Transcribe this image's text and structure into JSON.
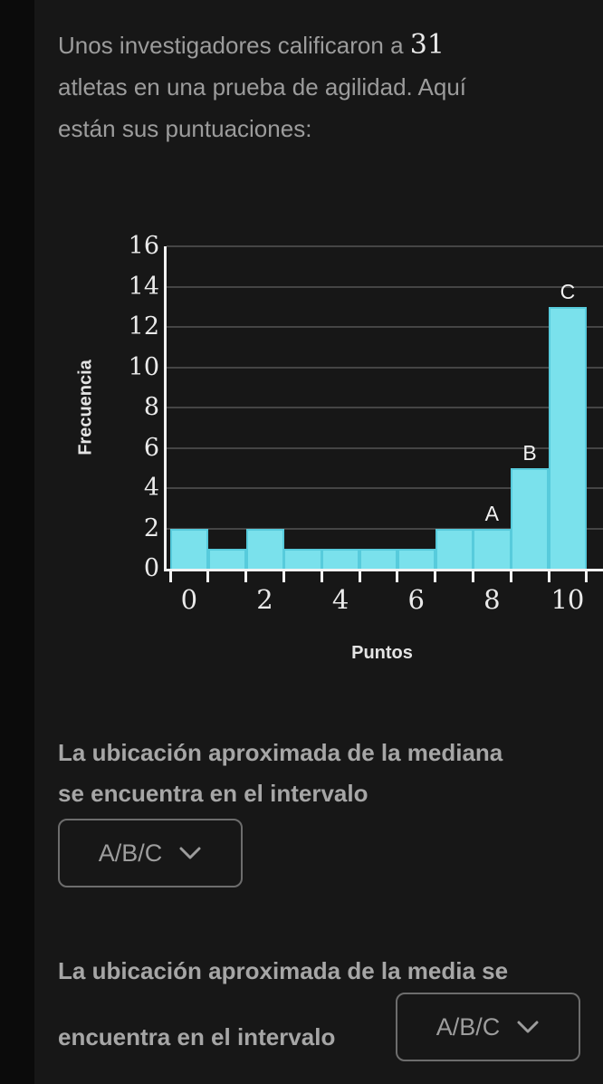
{
  "intro": {
    "line1_pre": "Unos investigadores calificaron a ",
    "athlete_count": "31",
    "line2": "atletas en una prueba de agilidad. Aquí",
    "line3": "están sus puntuaciones:"
  },
  "chart_data": {
    "type": "bar",
    "title": "",
    "xlabel": "Puntos",
    "ylabel": "Frecuencia",
    "categories": [
      0,
      1,
      2,
      3,
      4,
      5,
      6,
      7,
      8,
      9,
      10
    ],
    "values": [
      2,
      1,
      2,
      1,
      1,
      1,
      1,
      2,
      2,
      5,
      13
    ],
    "ylim": [
      0,
      16
    ],
    "ytick_step": 2,
    "xtick_labels": [
      "0",
      "2",
      "4",
      "6",
      "8",
      "10"
    ],
    "grid": "horizontal",
    "legend": "none",
    "bar_labels": [
      {
        "text": "A",
        "bin": 8
      },
      {
        "text": "B",
        "bin": 9
      },
      {
        "text": "C",
        "bin": 10
      }
    ],
    "bar_color": "#7ae1ec",
    "bar_border_color": "#57cbdc",
    "gridline_color": "#454545",
    "axis_color": "#f2f2f2"
  },
  "question_median": {
    "line1": "La ubicación aproximada de la mediana",
    "line2": "se encuentra en el intervalo",
    "dropdown_label": "A/B/C"
  },
  "question_mean": {
    "line1": "La ubicación aproximada de la media se",
    "line2": "encuentra en el intervalo",
    "dropdown_label": "A/B/C"
  }
}
